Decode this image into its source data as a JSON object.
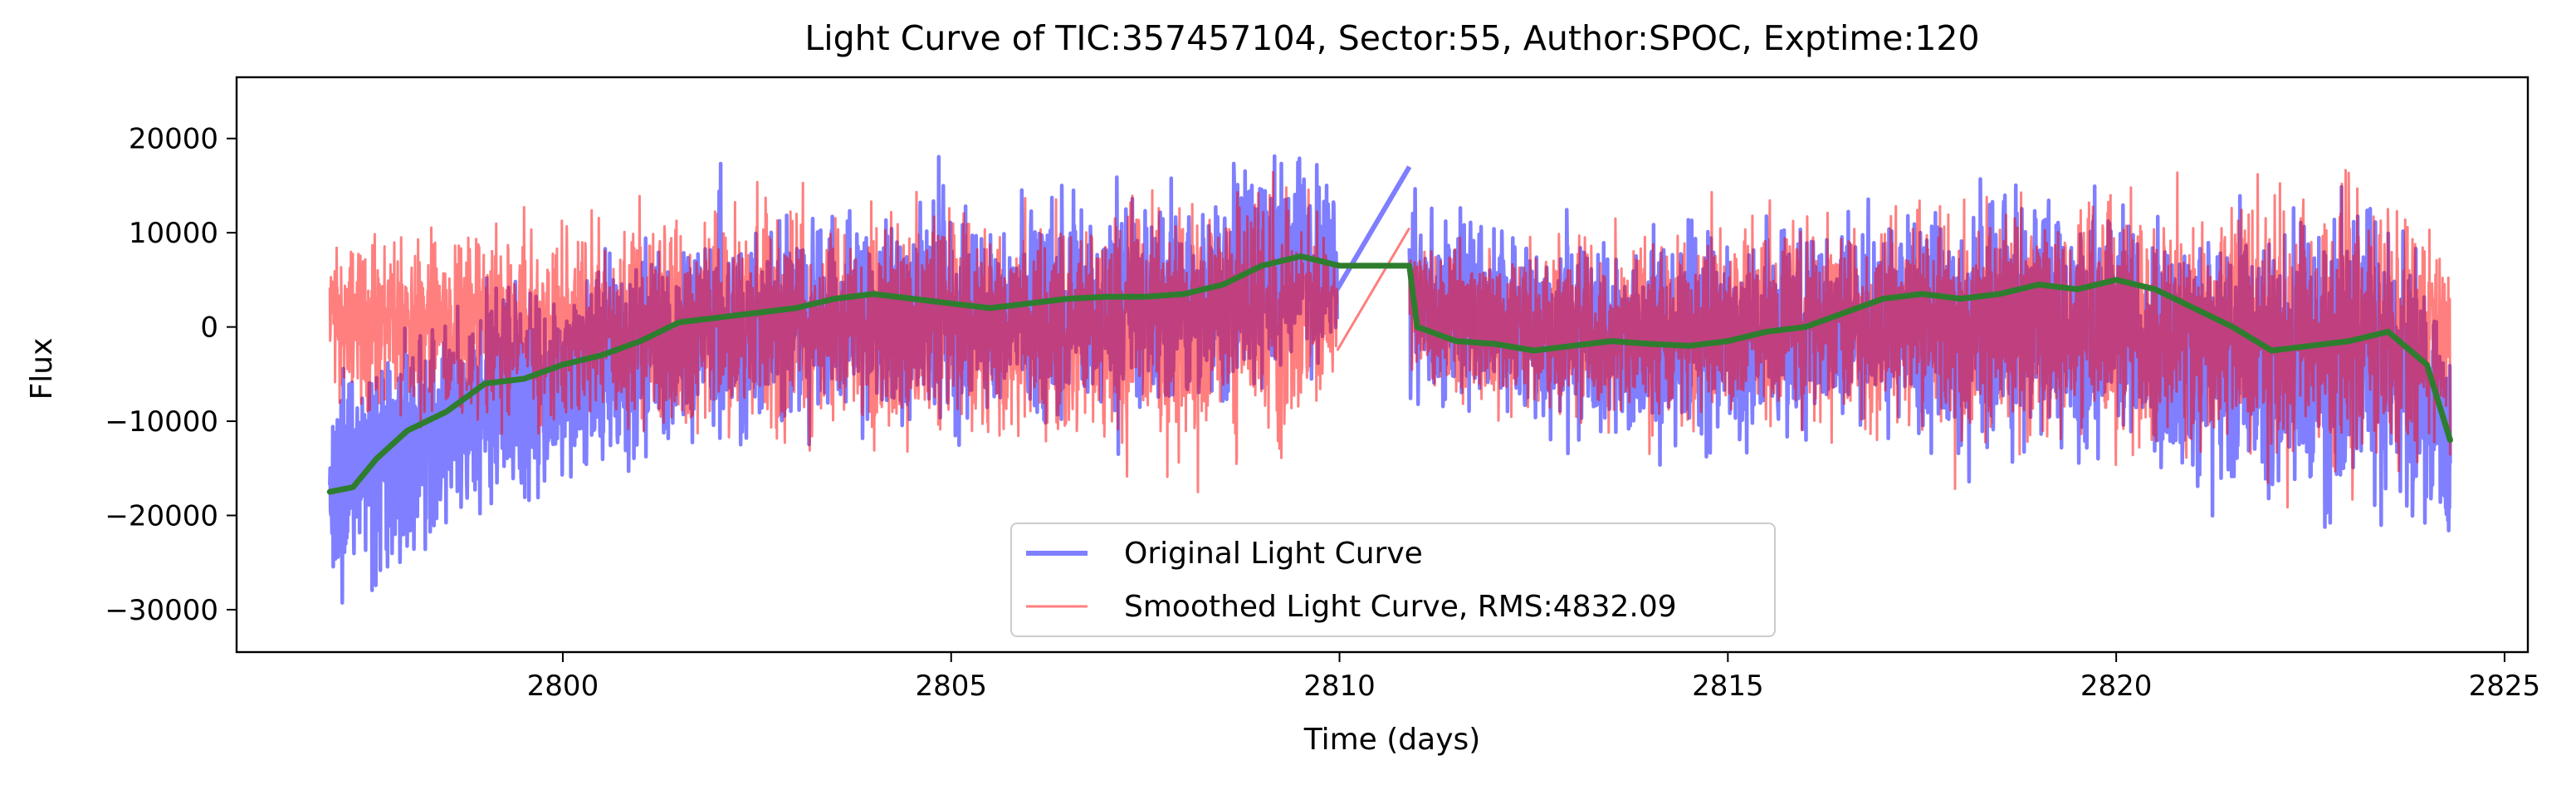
{
  "chart_data": {
    "type": "line",
    "title": "Light Curve of TIC:357457104, Sector:55, Author:SPOC, Exptime:120",
    "xlabel": "Time (days)",
    "ylabel": "Flux",
    "xlim": [
      2795.8,
      2825.3
    ],
    "ylim": [
      -34500,
      26500
    ],
    "xticks": [
      2800,
      2805,
      2810,
      2815,
      2820,
      2825
    ],
    "yticks": [
      -30000,
      -20000,
      -10000,
      0,
      10000,
      20000
    ],
    "grid": false,
    "legend": {
      "placement": "lower-center",
      "entries": [
        {
          "label": "Original Light Curve",
          "color": "#0000ff"
        },
        {
          "label": "Smoothed Light Curve, RMS:4832.09",
          "color": "#ff0000"
        }
      ]
    },
    "series": [
      {
        "name": "Original Light Curve",
        "color": "#0000ff",
        "opacity": 0.5,
        "style": "noise-band",
        "gap": [
          2809.97,
          2810.9
        ],
        "envelope": {
          "x": [
            2797.0,
            2797.5,
            2798.0,
            2799.0,
            2800.0,
            2801.0,
            2802.0,
            2803.0,
            2804.0,
            2805.0,
            2806.0,
            2807.0,
            2808.0,
            2809.0,
            2809.5,
            2809.97,
            2810.9,
            2812.0,
            2813.0,
            2814.0,
            2815.0,
            2816.0,
            2817.0,
            2818.0,
            2819.0,
            2820.0,
            2821.0,
            2822.0,
            2823.0,
            2823.5,
            2824.0,
            2824.3
          ],
          "upper": [
            -6000,
            -3000,
            0,
            4000,
            7000,
            9000,
            11000,
            12000,
            13000,
            13000,
            14000,
            14500,
            15000,
            17000,
            17000,
            16000,
            15000,
            11000,
            10000,
            10000,
            11000,
            12000,
            13000,
            14000,
            14000,
            14000,
            12000,
            13000,
            13000,
            12000,
            9000,
            4000
          ],
          "lower": [
            -28000,
            -27000,
            -25000,
            -21000,
            -17000,
            -14000,
            -12000,
            -11000,
            -11000,
            -12000,
            -11000,
            -10000,
            -9000,
            -7000,
            -5000,
            -4000,
            -9000,
            -10000,
            -12000,
            -13000,
            -14000,
            -13000,
            -12000,
            -13000,
            -14000,
            -15000,
            -16000,
            -19000,
            -20000,
            -20000,
            -22000,
            -25000
          ]
        },
        "gap_segment": {
          "x": [
            2809.97,
            2810.9
          ],
          "y": [
            4000,
            17000
          ]
        }
      },
      {
        "name": "Smoothed Light Curve, RMS:4832.09",
        "color": "#ff0000",
        "opacity": 0.5,
        "style": "noise-band",
        "gap": [
          2809.97,
          2810.9
        ],
        "envelope": {
          "x": [
            2797.0,
            2797.5,
            2798.0,
            2799.0,
            2800.0,
            2801.0,
            2802.0,
            2803.0,
            2804.0,
            2805.0,
            2806.0,
            2807.0,
            2808.0,
            2809.0,
            2809.5,
            2809.97,
            2810.9,
            2812.0,
            2813.0,
            2814.0,
            2815.0,
            2816.0,
            2817.0,
            2818.0,
            2819.0,
            2820.0,
            2821.0,
            2822.0,
            2823.0,
            2823.5,
            2824.0,
            2824.3
          ],
          "upper": [
            10000,
            11000,
            11000,
            11500,
            11000,
            11500,
            12000,
            12500,
            13000,
            12500,
            12500,
            13000,
            14000,
            15000,
            14000,
            12000,
            10000,
            9000,
            9500,
            10000,
            11000,
            12000,
            13000,
            14000,
            14000,
            15000,
            14000,
            16000,
            15000,
            14000,
            12000,
            9000
          ],
          "lower": [
            -7000,
            -9000,
            -10000,
            -11000,
            -11000,
            -12000,
            -12500,
            -13000,
            -13000,
            -13500,
            -13500,
            -13500,
            -14000,
            -13000,
            -10000,
            -4000,
            -5000,
            -9000,
            -10000,
            -10500,
            -11000,
            -11000,
            -11000,
            -12000,
            -12500,
            -13000,
            -14500,
            -16000,
            -15000,
            -15000,
            -14000,
            -13000
          ]
        },
        "gap_segment": {
          "x": [
            2809.97,
            2810.9
          ],
          "y": [
            -2500,
            10500
          ]
        }
      },
      {
        "name": "",
        "color": "#2e7d2e",
        "opacity": 1.0,
        "style": "line",
        "x": [
          2797.0,
          2797.3,
          2797.6,
          2798.0,
          2798.5,
          2799.0,
          2799.5,
          2800.0,
          2800.5,
          2801.0,
          2801.5,
          2802.0,
          2802.5,
          2803.0,
          2803.5,
          2804.0,
          2804.5,
          2805.0,
          2805.5,
          2806.0,
          2806.5,
          2807.0,
          2807.5,
          2808.0,
          2808.5,
          2809.0,
          2809.5,
          2810.0,
          2810.9,
          2811.0,
          2811.5,
          2812.0,
          2812.5,
          2813.0,
          2813.5,
          2814.0,
          2814.5,
          2815.0,
          2815.5,
          2816.0,
          2816.5,
          2817.0,
          2817.5,
          2818.0,
          2818.5,
          2819.0,
          2819.5,
          2820.0,
          2820.5,
          2821.0,
          2821.5,
          2822.0,
          2822.5,
          2823.0,
          2823.5,
          2824.0,
          2824.3
        ],
        "y": [
          -17500,
          -17000,
          -14000,
          -11000,
          -9000,
          -6000,
          -5500,
          -4000,
          -3000,
          -1500,
          500,
          1000,
          1500,
          2000,
          3000,
          3500,
          3000,
          2500,
          2000,
          2500,
          3000,
          3200,
          3200,
          3500,
          4500,
          6500,
          7500,
          6500,
          6500,
          0,
          -1500,
          -1800,
          -2500,
          -2000,
          -1500,
          -1800,
          -2000,
          -1500,
          -500,
          0,
          1500,
          3000,
          3500,
          3000,
          3500,
          4500,
          4000,
          5000,
          4000,
          2000,
          0,
          -2500,
          -2000,
          -1500,
          -500,
          -4000,
          -12000
        ]
      }
    ]
  }
}
